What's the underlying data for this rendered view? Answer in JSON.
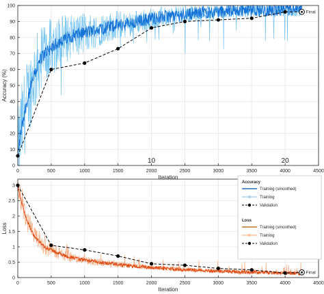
{
  "chart_data": [
    {
      "type": "line",
      "ylabel": "Accuracy (%)",
      "xlabel": "Iteration",
      "xlim": [
        0,
        4500
      ],
      "ylim": [
        0,
        100
      ],
      "xticks": [
        0,
        500,
        1000,
        1500,
        2000,
        2500,
        3000,
        3500,
        4000,
        4500
      ],
      "yticks": [
        0,
        10,
        20,
        30,
        40,
        50,
        60,
        70,
        80,
        90,
        100
      ],
      "epoch_labels": [
        {
          "x": 2000,
          "label": "10"
        },
        {
          "x": 4000,
          "label": "20"
        }
      ],
      "final_label": "Final",
      "grid": true,
      "smoothed_curve": {
        "x": [
          0,
          50,
          100,
          150,
          200,
          250,
          300,
          350,
          400,
          450,
          500,
          600,
          700,
          800,
          900,
          1000,
          1100,
          1200,
          1300,
          1400,
          1500,
          1600,
          1700,
          1800,
          1900,
          2000,
          2200,
          2400,
          2600,
          2800,
          3000,
          3200,
          3400,
          3600,
          3800,
          4000,
          4250
        ],
        "y": [
          6,
          22,
          33,
          42,
          50,
          57,
          62,
          67,
          70,
          72,
          73,
          77,
          79,
          81,
          82,
          83,
          84,
          85,
          86,
          87,
          88,
          88,
          89,
          90,
          91,
          92,
          93,
          94,
          95,
          96,
          96,
          97,
          97,
          97,
          97,
          97,
          97
        ]
      },
      "validation": {
        "x": [
          0,
          500,
          1000,
          1500,
          2000,
          2500,
          3000,
          3500,
          4000,
          4250
        ],
        "y": [
          6,
          60,
          64,
          73,
          86,
          90,
          91,
          92,
          96,
          96
        ]
      }
    },
    {
      "type": "line",
      "ylabel": "Loss",
      "xlabel": "Iteration",
      "xlim": [
        0,
        4500
      ],
      "ylim": [
        0,
        3.2
      ],
      "xticks": [
        0,
        500,
        1000,
        1500,
        2000,
        2500,
        3000,
        3500,
        4000,
        4500
      ],
      "yticks": [
        0,
        0.5,
        1,
        1.5,
        2,
        2.5,
        3
      ],
      "final_label": "Final",
      "grid": true,
      "smoothed_curve": {
        "x": [
          0,
          50,
          100,
          150,
          200,
          250,
          300,
          350,
          400,
          450,
          500,
          600,
          700,
          800,
          900,
          1000,
          1200,
          1400,
          1600,
          1800,
          2000,
          2200,
          2400,
          2600,
          2800,
          3000,
          3200,
          3400,
          3600,
          3800,
          4000,
          4250
        ],
        "y": [
          3.0,
          2.5,
          2.1,
          1.8,
          1.55,
          1.35,
          1.2,
          1.1,
          1.0,
          0.95,
          0.9,
          0.8,
          0.72,
          0.66,
          0.61,
          0.57,
          0.5,
          0.45,
          0.4,
          0.36,
          0.33,
          0.3,
          0.27,
          0.25,
          0.23,
          0.21,
          0.19,
          0.18,
          0.17,
          0.16,
          0.15,
          0.14
        ]
      },
      "validation": {
        "x": [
          0,
          500,
          1000,
          1500,
          2000,
          2500,
          3000,
          3500,
          4000,
          4250
        ],
        "y": [
          3.0,
          1.05,
          0.9,
          0.7,
          0.45,
          0.4,
          0.3,
          0.25,
          0.15,
          0.17
        ]
      }
    }
  ],
  "legend": {
    "accuracy_title": "Accuracy",
    "loss_title": "Loss",
    "smoothed_label": "Training (smoothed)",
    "training_label": "Training",
    "validation_label": "Validation"
  },
  "colors": {
    "acc_raw": "#5cb8f0",
    "acc_smooth": "#1572d6",
    "loss_raw": "#f5a070",
    "loss_smooth": "#e04a14",
    "validation": "#000000",
    "grid": "#e6e6e6",
    "axis": "#262626",
    "legend_acc_raw": "#a8d4f2",
    "legend_loss_raw": "#f7c3a0",
    "legend_acc_smooth": "#2c6fbf",
    "legend_loss_smooth": "#b8742a"
  }
}
